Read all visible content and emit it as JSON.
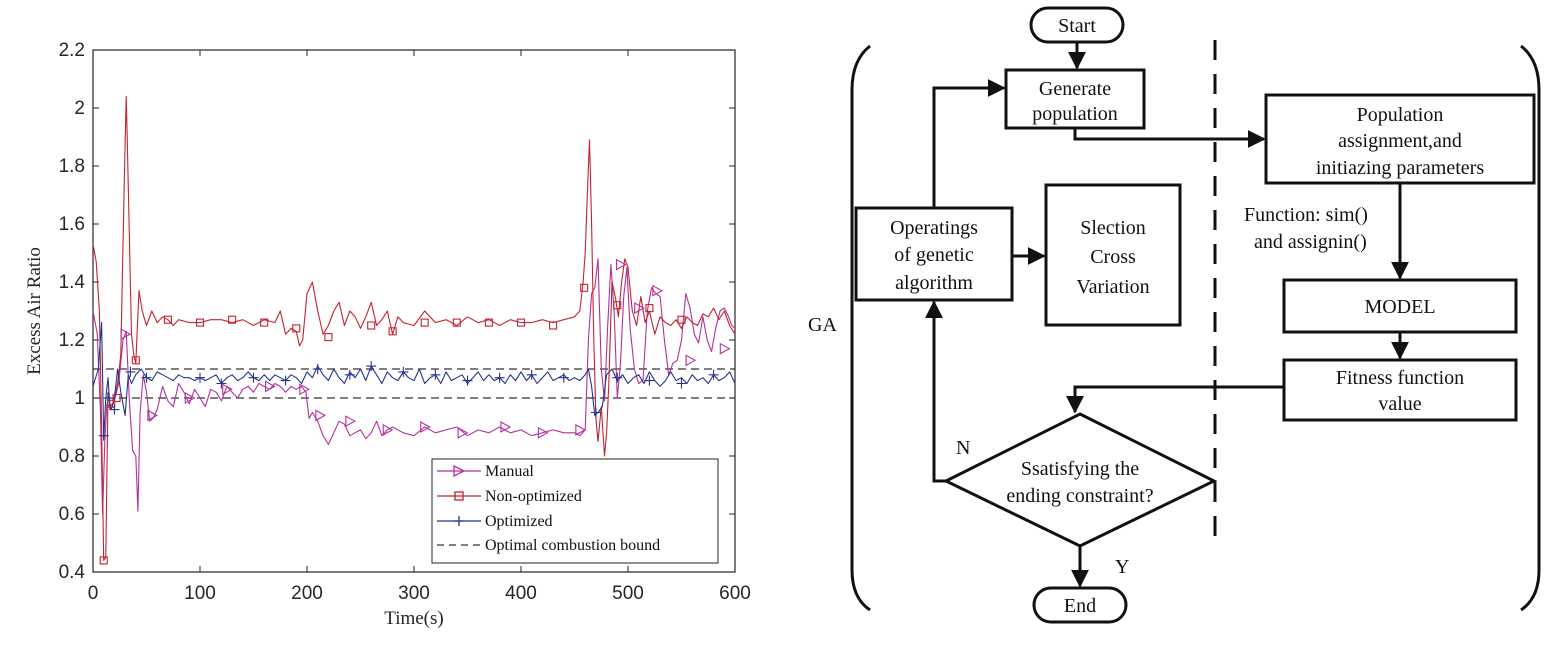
{
  "chart_data": {
    "type": "line",
    "xlabel": "Time(s)",
    "ylabel": "Excess Air Ratio",
    "xlim": [
      0,
      600
    ],
    "ylim": [
      0.4,
      2.2
    ],
    "xticks": [
      0,
      100,
      200,
      300,
      400,
      500,
      600
    ],
    "yticks": [
      0.4,
      0.6,
      0.8,
      1,
      1.2,
      1.4,
      1.6,
      1.8,
      2,
      2.2
    ],
    "ytick_labels": [
      "0.4",
      "0.6",
      "0.8",
      "1",
      "1.2",
      "1.4",
      "1.6",
      "1.8",
      "2",
      "2.2"
    ],
    "grid": false,
    "legend_position": "bottom-right",
    "series": [
      {
        "name": "Manual",
        "color": "#b0319c",
        "marker": "triangle-right",
        "x": [
          0,
          4,
          7,
          9,
          11,
          13,
          16,
          20,
          24,
          28,
          31,
          34,
          37,
          40,
          42,
          44,
          47,
          50,
          53,
          56,
          60,
          65,
          70,
          75,
          80,
          85,
          90,
          95,
          100,
          105,
          110,
          115,
          120,
          125,
          130,
          135,
          140,
          145,
          150,
          155,
          160,
          165,
          170,
          175,
          180,
          185,
          190,
          195,
          199,
          202,
          205,
          210,
          215,
          220,
          225,
          230,
          235,
          240,
          245,
          250,
          255,
          260,
          265,
          270,
          275,
          280,
          290,
          300,
          310,
          320,
          330,
          340,
          350,
          360,
          370,
          380,
          390,
          400,
          410,
          420,
          430,
          440,
          450,
          455,
          460,
          463,
          466,
          469,
          472,
          475,
          478,
          481,
          484,
          487,
          490,
          493,
          496,
          499,
          502,
          506,
          510,
          514,
          518,
          522,
          526,
          530,
          534,
          538,
          542,
          546,
          550,
          554,
          558,
          562,
          566,
          570,
          574,
          578,
          582,
          586,
          590,
          594,
          597,
          600
        ],
        "y": [
          1.3,
          1.22,
          0.95,
          0.6,
          0.85,
          0.98,
          0.97,
          0.99,
          1.05,
          1.2,
          1.23,
          0.99,
          0.82,
          0.8,
          0.61,
          0.95,
          1.08,
          1.02,
          0.92,
          0.93,
          0.96,
          1.04,
          0.99,
          0.97,
          1.05,
          1.02,
          0.98,
          1.03,
          1.0,
          0.97,
          1.03,
          1.02,
          0.99,
          1.04,
          1.02,
          1.0,
          1.03,
          1.04,
          1.02,
          1.05,
          1.04,
          1.03,
          1.05,
          1.04,
          1.02,
          1.04,
          1.03,
          1.04,
          1.02,
          0.93,
          0.95,
          0.92,
          0.87,
          0.84,
          0.88,
          0.92,
          0.91,
          0.87,
          0.88,
          0.89,
          0.86,
          0.88,
          0.92,
          0.87,
          0.89,
          0.9,
          0.88,
          0.87,
          0.9,
          0.88,
          0.89,
          0.9,
          0.87,
          0.89,
          0.88,
          0.9,
          0.88,
          0.89,
          0.87,
          0.88,
          0.89,
          0.88,
          0.88,
          0.87,
          0.89,
          1.2,
          1.36,
          1.38,
          1.48,
          1.1,
          0.99,
          1.25,
          1.46,
          1.3,
          1.0,
          1.12,
          1.35,
          1.45,
          1.24,
          1.1,
          1.05,
          1.06,
          1.3,
          1.38,
          1.36,
          1.35,
          1.2,
          1.08,
          1.12,
          1.13,
          1.2,
          1.36,
          1.31,
          1.22,
          1.19,
          1.28,
          1.2,
          1.16,
          1.24,
          1.3,
          1.31,
          1.28,
          1.25,
          1.24
        ],
        "marker_x": [
          30,
          55,
          90,
          125,
          165,
          197,
          212,
          240,
          275,
          310,
          345,
          385,
          420,
          455,
          493,
          510,
          527,
          558,
          590
        ],
        "marker_y": [
          1.22,
          0.94,
          1.0,
          1.03,
          1.04,
          1.03,
          0.94,
          0.92,
          0.89,
          0.9,
          0.88,
          0.9,
          0.88,
          0.89,
          1.46,
          1.31,
          1.37,
          1.13,
          1.17
        ]
      },
      {
        "name": "Non-optimized",
        "color": "#c4222f",
        "marker": "square",
        "x": [
          0,
          3,
          6,
          8,
          10,
          12,
          14,
          17,
          20,
          23,
          26,
          29,
          31,
          32,
          34,
          36,
          38,
          40,
          43,
          46,
          50,
          55,
          60,
          65,
          70,
          75,
          80,
          90,
          100,
          110,
          120,
          130,
          140,
          150,
          160,
          170,
          175,
          180,
          185,
          190,
          193,
          196,
          200,
          205,
          210,
          215,
          220,
          225,
          230,
          235,
          240,
          245,
          250,
          255,
          260,
          265,
          270,
          275,
          280,
          285,
          290,
          300,
          310,
          320,
          330,
          340,
          350,
          360,
          370,
          380,
          390,
          400,
          410,
          420,
          430,
          440,
          450,
          455,
          458,
          460,
          462,
          464,
          466,
          468,
          470,
          472,
          475,
          478,
          480,
          482,
          485,
          488,
          491,
          494,
          497,
          500,
          504,
          508,
          512,
          516,
          520,
          525,
          530,
          535,
          540,
          545,
          550,
          555,
          560,
          565,
          570,
          575,
          580,
          585,
          590,
          595,
          600
        ],
        "y": [
          1.53,
          1.47,
          1.3,
          0.9,
          0.44,
          0.45,
          1.02,
          0.96,
          1.0,
          1.05,
          1.15,
          1.7,
          2.04,
          1.9,
          1.55,
          1.22,
          1.15,
          1.12,
          1.37,
          1.3,
          1.25,
          1.3,
          1.26,
          1.28,
          1.27,
          1.25,
          1.27,
          1.26,
          1.26,
          1.27,
          1.27,
          1.26,
          1.27,
          1.25,
          1.27,
          1.26,
          1.3,
          1.22,
          1.24,
          1.23,
          1.18,
          1.2,
          1.36,
          1.4,
          1.3,
          1.22,
          1.25,
          1.3,
          1.33,
          1.25,
          1.3,
          1.28,
          1.24,
          1.28,
          1.33,
          1.25,
          1.27,
          1.3,
          1.22,
          1.28,
          1.26,
          1.25,
          1.3,
          1.26,
          1.27,
          1.25,
          1.28,
          1.26,
          1.27,
          1.25,
          1.27,
          1.26,
          1.26,
          1.27,
          1.26,
          1.27,
          1.28,
          1.3,
          1.4,
          1.5,
          1.7,
          1.89,
          1.6,
          1.2,
          0.93,
          0.85,
          0.97,
          0.8,
          0.88,
          1.04,
          1.4,
          1.35,
          1.28,
          1.4,
          1.48,
          1.45,
          1.3,
          1.25,
          1.35,
          1.26,
          1.3,
          1.22,
          1.28,
          1.26,
          1.25,
          1.27,
          1.24,
          1.28,
          1.26,
          1.25,
          1.29,
          1.28,
          1.31,
          1.27,
          1.3,
          1.25,
          1.22
        ],
        "marker_x": [
          10,
          17,
          22,
          40,
          70,
          100,
          130,
          160,
          190,
          220,
          260,
          280,
          310,
          340,
          370,
          400,
          430,
          459,
          490,
          520,
          550
        ],
        "marker_y": [
          0.44,
          0.98,
          1.0,
          1.13,
          1.27,
          1.26,
          1.27,
          1.26,
          1.24,
          1.21,
          1.25,
          1.23,
          1.26,
          1.26,
          1.26,
          1.26,
          1.25,
          1.38,
          1.32,
          1.31,
          1.27
        ]
      },
      {
        "name": "Optimized",
        "color": "#23358c",
        "marker": "plus",
        "x": [
          0,
          5,
          8,
          10,
          12,
          14,
          16,
          18,
          20,
          23,
          26,
          30,
          33,
          36,
          40,
          45,
          50,
          55,
          60,
          65,
          70,
          75,
          80,
          85,
          90,
          95,
          100,
          105,
          110,
          115,
          120,
          125,
          130,
          135,
          140,
          145,
          150,
          155,
          160,
          165,
          170,
          175,
          180,
          185,
          190,
          195,
          200,
          205,
          210,
          215,
          220,
          225,
          230,
          235,
          240,
          245,
          250,
          255,
          260,
          265,
          270,
          275,
          280,
          285,
          290,
          295,
          300,
          305,
          310,
          315,
          320,
          325,
          330,
          335,
          340,
          345,
          350,
          355,
          360,
          365,
          370,
          375,
          380,
          385,
          390,
          395,
          400,
          405,
          410,
          415,
          420,
          425,
          430,
          435,
          440,
          445,
          450,
          455,
          460,
          463,
          466,
          469,
          472,
          476,
          480,
          485,
          490,
          495,
          500,
          505,
          510,
          515,
          520,
          525,
          530,
          535,
          540,
          545,
          550,
          555,
          560,
          565,
          570,
          575,
          580,
          585,
          590,
          595,
          600
        ],
        "y": [
          1.04,
          1.1,
          1.26,
          0.86,
          1.0,
          1.07,
          0.96,
          0.97,
          1.0,
          1.1,
          1.02,
          0.94,
          1.08,
          1.05,
          1.08,
          1.1,
          1.07,
          1.06,
          1.09,
          1.08,
          1.07,
          1.06,
          1.08,
          1.07,
          1.07,
          1.06,
          1.07,
          1.06,
          1.07,
          1.08,
          1.05,
          1.07,
          1.08,
          1.06,
          1.07,
          1.09,
          1.07,
          1.06,
          1.08,
          1.06,
          1.08,
          1.07,
          1.06,
          1.08,
          1.07,
          1.05,
          1.09,
          1.07,
          1.11,
          1.08,
          1.06,
          1.1,
          1.07,
          1.05,
          1.09,
          1.07,
          1.1,
          1.06,
          1.11,
          1.08,
          1.05,
          1.09,
          1.07,
          1.06,
          1.09,
          1.07,
          1.06,
          1.1,
          1.05,
          1.07,
          1.08,
          1.05,
          1.09,
          1.06,
          1.07,
          1.08,
          1.05,
          1.07,
          1.09,
          1.06,
          1.08,
          1.06,
          1.07,
          1.05,
          1.08,
          1.06,
          1.09,
          1.06,
          1.08,
          1.05,
          1.07,
          1.09,
          1.06,
          1.07,
          1.08,
          1.06,
          1.07,
          1.06,
          1.08,
          1.1,
          1.04,
          0.94,
          0.95,
          0.97,
          1.08,
          1.1,
          1.06,
          1.08,
          1.05,
          1.07,
          1.08,
          1.05,
          1.09,
          1.06,
          1.04,
          1.06,
          1.09,
          1.06,
          1.07,
          1.05,
          1.08,
          1.06,
          1.07,
          1.05,
          1.08,
          1.06,
          1.07,
          1.09,
          1.05
        ],
        "marker_x": [
          10,
          14,
          20,
          35,
          50,
          100,
          120,
          150,
          180,
          210,
          240,
          260,
          290,
          320,
          350,
          380,
          410,
          440,
          470,
          490,
          520,
          550,
          580
        ],
        "marker_y": [
          0.87,
          1.0,
          0.96,
          1.09,
          1.07,
          1.07,
          1.05,
          1.07,
          1.06,
          1.1,
          1.08,
          1.11,
          1.09,
          1.08,
          1.06,
          1.07,
          1.08,
          1.07,
          0.95,
          1.07,
          1.06,
          1.05,
          1.08
        ]
      },
      {
        "name": "Optimal combustion bound",
        "color": "#333333",
        "style": "dashed",
        "bounds": [
          1.0,
          1.1
        ]
      }
    ]
  },
  "flowchart": {
    "start": "Start",
    "generate_line1": "Generate",
    "generate_line2": "population",
    "popassign_line1": "Population",
    "popassign_line2": "assignment,and",
    "popassign_line3": "initiazing parameters",
    "function_line1": "Function: sim()",
    "function_line2": "and assignin()",
    "model": "MODEL",
    "fitness_line1": "Fitness function",
    "fitness_line2": "value",
    "operating_line1": "Operatings",
    "operating_line2": "of genetic",
    "operating_line3": "algorithm",
    "selection_line1": "Slection",
    "selection_line2": "Cross",
    "selection_line3": "Variation",
    "decision_line1": "Ssatisfying the",
    "decision_line2": "ending constraint?",
    "label_n": "N",
    "label_y": "Y",
    "label_ga": "GA",
    "end": "End"
  }
}
